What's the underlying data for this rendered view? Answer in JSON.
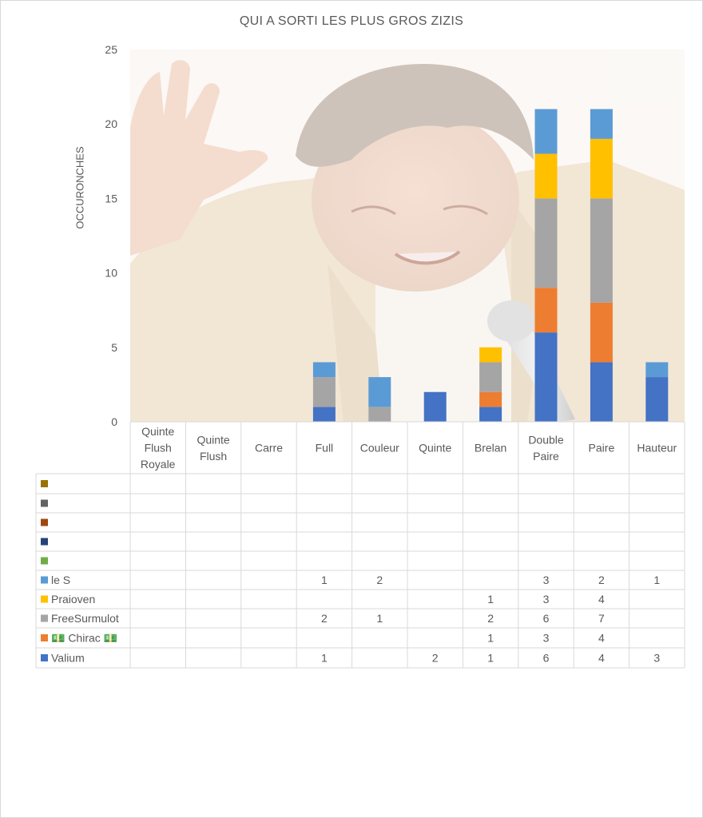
{
  "chart_data": {
    "type": "bar",
    "stacked": true,
    "title": "QUI A SORTI LES PLUS GROS ZIZIS",
    "xlabel": "",
    "ylabel": "OCCURONCHES",
    "ylim": [
      0,
      25
    ],
    "yticks": [
      0,
      5,
      10,
      15,
      20,
      25
    ],
    "grid": false,
    "legend_placement": "data-table",
    "categories": [
      "Quinte Flush Royale",
      "Quinte Flush",
      "Carre",
      "Full",
      "Couleur",
      "Quinte",
      "Brelan",
      "Double Paire",
      "Paire",
      "Hauteur"
    ],
    "category_lines": [
      [
        "Quinte",
        "Flush",
        "Royale"
      ],
      [
        "Quinte",
        "Flush"
      ],
      [
        "Carre"
      ],
      [
        "Full"
      ],
      [
        "Couleur"
      ],
      [
        "Quinte"
      ],
      [
        "Brelan"
      ],
      [
        "Double",
        "Paire"
      ],
      [
        "Paire"
      ],
      [
        "Hauteur"
      ]
    ],
    "series": [
      {
        "name": "Valium",
        "color": "#4472c4",
        "values": [
          null,
          null,
          null,
          1,
          null,
          2,
          1,
          6,
          4,
          3
        ]
      },
      {
        "name": "💵 Chirac 💵",
        "color": "#ed7d31",
        "values": [
          null,
          null,
          null,
          null,
          null,
          null,
          1,
          3,
          4,
          null
        ]
      },
      {
        "name": "FreeSurmulot",
        "color": "#a5a5a5",
        "values": [
          null,
          null,
          null,
          2,
          1,
          null,
          2,
          6,
          7,
          null
        ]
      },
      {
        "name": "Praioven",
        "color": "#ffc000",
        "values": [
          null,
          null,
          null,
          null,
          null,
          null,
          1,
          3,
          4,
          null
        ]
      },
      {
        "name": "le S",
        "color": "#5b9bd5",
        "values": [
          null,
          null,
          null,
          1,
          2,
          null,
          null,
          3,
          2,
          1
        ]
      },
      {
        "name": "",
        "color": "#70ad47",
        "values": [
          null,
          null,
          null,
          null,
          null,
          null,
          null,
          null,
          null,
          null
        ]
      },
      {
        "name": "",
        "color": "#264478",
        "values": [
          null,
          null,
          null,
          null,
          null,
          null,
          null,
          null,
          null,
          null
        ]
      },
      {
        "name": "",
        "color": "#9e480e",
        "values": [
          null,
          null,
          null,
          null,
          null,
          null,
          null,
          null,
          null,
          null
        ]
      },
      {
        "name": "",
        "color": "#636363",
        "values": [
          null,
          null,
          null,
          null,
          null,
          null,
          null,
          null,
          null,
          null
        ]
      },
      {
        "name": "",
        "color": "#997300",
        "values": [
          null,
          null,
          null,
          null,
          null,
          null,
          null,
          null,
          null,
          null
        ]
      }
    ]
  }
}
